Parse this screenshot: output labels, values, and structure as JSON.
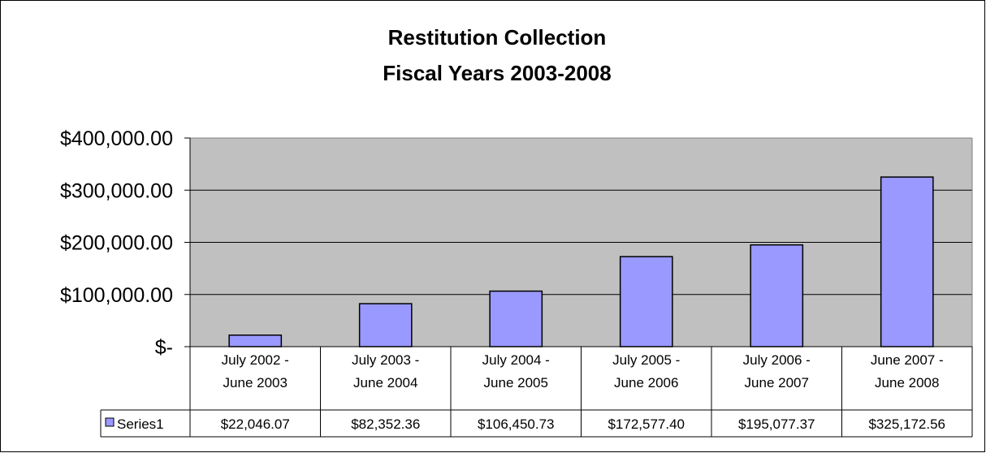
{
  "chart_data": {
    "type": "bar",
    "title": "Restitution Collection",
    "subtitle": "Fiscal Years 2003-2008",
    "categories": [
      [
        "July 2002 -",
        "June 2003"
      ],
      [
        "July 2003 -",
        "June 2004"
      ],
      [
        "July 2004 -",
        "June 2005"
      ],
      [
        "July 2005 -",
        "June 2006"
      ],
      [
        "July 2006 -",
        "June 2007"
      ],
      [
        "June 2007 -",
        "June 2008"
      ]
    ],
    "series": [
      {
        "name": "Series1",
        "values": [
          22046.07,
          82352.36,
          106450.73,
          172577.4,
          195077.37,
          325172.56
        ],
        "labels": [
          "$22,046.07",
          "$82,352.36",
          "$106,450.73",
          "$172,577.40",
          "$195,077.37",
          "$325,172.56"
        ],
        "color": "#9999ff"
      }
    ],
    "ylim": [
      0,
      400000
    ],
    "yticks": [
      0,
      100000,
      200000,
      300000,
      400000
    ],
    "ytick_labels": [
      "$-",
      "$100,000.00",
      "$200,000.00",
      "$300,000.00",
      "$400,000.00"
    ],
    "grid": true,
    "plot_background": "#c0c0c0",
    "data_table": true,
    "legend_placement": "data-table"
  }
}
